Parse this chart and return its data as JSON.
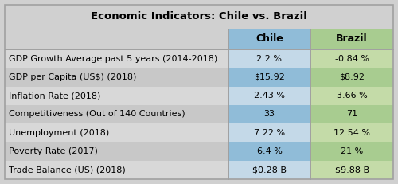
{
  "title": "Economic Indicators: Chile vs. Brazil",
  "rows": [
    [
      "GDP Growth Average past 5 years (2014-2018)",
      "2.2 %",
      "-0.84 %"
    ],
    [
      "GDP per Capita (US$) (2018)",
      "$15.92",
      "$8.92"
    ],
    [
      "Inflation Rate (2018)",
      "2.43 %",
      "3.66 %"
    ],
    [
      "Competitiveness (Out of 140 Countries)",
      "33",
      "71"
    ],
    [
      "Unemployment (2018)",
      "7.22 %",
      "12.54 %"
    ],
    [
      "Poverty Rate (2017)",
      "6.4 %",
      "21 %"
    ],
    [
      "Trade Balance (US) (2018)",
      "$0.28 B",
      "$9.88 B"
    ]
  ],
  "bg_color": "#d0d0d0",
  "chile_header_bg": "#90bcd8",
  "brazil_header_bg": "#a8cc90",
  "chile_col_light": "#c4d9e8",
  "chile_col_dark": "#90bcd8",
  "brazil_col_light": "#c4dba8",
  "brazil_col_dark": "#a8cc90",
  "indicator_col_light": "#d8d8d8",
  "indicator_col_dark": "#c8c8c8",
  "border_color": "#a0a0a0",
  "title_fontsize": 9.5,
  "header_fontsize": 9,
  "cell_fontsize": 8
}
